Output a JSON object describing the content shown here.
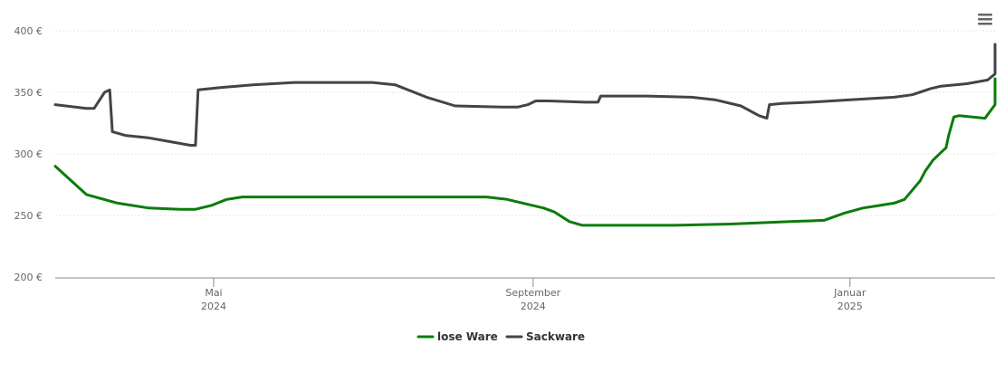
{
  "chart_data": {
    "type": "line",
    "title": "",
    "xlabel": "",
    "ylabel": "",
    "ylim": [
      200,
      400
    ],
    "y_ticks": [
      {
        "value": 200,
        "label": "200 €"
      },
      {
        "value": 250,
        "label": "250 €"
      },
      {
        "value": 300,
        "label": "300 €"
      },
      {
        "value": 350,
        "label": "350 €"
      },
      {
        "value": 400,
        "label": "400 €"
      }
    ],
    "xlim": [
      "2024-03-01",
      "2025-03-01"
    ],
    "x_ticks": [
      {
        "date": "2024-05-01",
        "month": "Mai",
        "year": "2024"
      },
      {
        "date": "2024-09-01",
        "month": "September",
        "year": "2024"
      },
      {
        "date": "2025-01-01",
        "month": "Januar",
        "year": "2025"
      }
    ],
    "grid": true,
    "legend_position": "bottom-center",
    "series": [
      {
        "name": "lose Ware",
        "color": "#0a7c0a",
        "points": [
          [
            "2024-03-01",
            290
          ],
          [
            "2024-03-13",
            267
          ],
          [
            "2024-03-25",
            260
          ],
          [
            "2024-04-06",
            256
          ],
          [
            "2024-04-18",
            255
          ],
          [
            "2024-04-24",
            255
          ],
          [
            "2024-04-30",
            258
          ],
          [
            "2024-05-06",
            263
          ],
          [
            "2024-05-12",
            265
          ],
          [
            "2024-06-01",
            265
          ],
          [
            "2024-07-01",
            265
          ],
          [
            "2024-08-01",
            265
          ],
          [
            "2024-08-14",
            265
          ],
          [
            "2024-08-22",
            263
          ],
          [
            "2024-09-05",
            256
          ],
          [
            "2024-09-09",
            253
          ],
          [
            "2024-09-15",
            245
          ],
          [
            "2024-09-20",
            242
          ],
          [
            "2024-10-01",
            242
          ],
          [
            "2024-10-25",
            242
          ],
          [
            "2024-11-16",
            243
          ],
          [
            "2024-12-09",
            245
          ],
          [
            "2024-12-22",
            246
          ],
          [
            "2024-12-30",
            252
          ],
          [
            "2025-01-06",
            256
          ],
          [
            "2025-01-12",
            258
          ],
          [
            "2025-01-18",
            260
          ],
          [
            "2025-01-22",
            263
          ],
          [
            "2025-01-28",
            278
          ],
          [
            "2025-01-30",
            286
          ],
          [
            "2025-02-02",
            295
          ],
          [
            "2025-02-05",
            301
          ],
          [
            "2025-02-07",
            305
          ],
          [
            "2025-02-08",
            315
          ],
          [
            "2025-02-10",
            330
          ],
          [
            "2025-02-12",
            331
          ],
          [
            "2025-02-22",
            329
          ],
          [
            "2025-02-28",
            340
          ],
          [
            "2025-03-07",
            350
          ],
          [
            "2025-03-15",
            361
          ]
        ]
      },
      {
        "name": "Sackware",
        "color": "#444444",
        "points": [
          [
            "2024-03-01",
            340
          ],
          [
            "2024-03-13",
            337
          ],
          [
            "2024-03-16",
            337
          ],
          [
            "2024-03-20",
            350
          ],
          [
            "2024-03-22",
            352
          ],
          [
            "2024-03-23",
            318
          ],
          [
            "2024-03-28",
            315
          ],
          [
            "2024-04-06",
            313
          ],
          [
            "2024-04-14",
            310
          ],
          [
            "2024-04-22",
            307
          ],
          [
            "2024-04-24",
            307
          ],
          [
            "2024-04-25",
            352
          ],
          [
            "2024-05-04",
            354
          ],
          [
            "2024-05-16",
            356
          ],
          [
            "2024-06-01",
            358
          ],
          [
            "2024-06-18",
            358
          ],
          [
            "2024-07-01",
            358
          ],
          [
            "2024-07-10",
            356
          ],
          [
            "2024-07-22",
            346
          ],
          [
            "2024-08-02",
            339
          ],
          [
            "2024-08-20",
            338
          ],
          [
            "2024-08-26",
            338
          ],
          [
            "2024-08-30",
            340
          ],
          [
            "2024-09-02",
            343
          ],
          [
            "2024-09-07",
            343
          ],
          [
            "2024-09-21",
            342
          ],
          [
            "2024-09-26",
            342
          ],
          [
            "2024-09-27",
            347
          ],
          [
            "2024-10-15",
            347
          ],
          [
            "2024-11-01",
            346
          ],
          [
            "2024-11-10",
            344
          ],
          [
            "2024-11-20",
            339
          ],
          [
            "2024-11-27",
            331
          ],
          [
            "2024-11-30",
            329
          ],
          [
            "2024-12-01",
            340
          ],
          [
            "2024-12-06",
            341
          ],
          [
            "2024-12-17",
            342
          ],
          [
            "2025-01-01",
            344
          ],
          [
            "2025-01-18",
            346
          ],
          [
            "2025-01-25",
            348
          ],
          [
            "2025-02-01",
            353
          ],
          [
            "2025-02-05",
            355
          ],
          [
            "2025-02-15",
            357
          ],
          [
            "2025-02-23",
            360
          ],
          [
            "2025-03-02",
            365
          ],
          [
            "2025-03-06",
            383
          ],
          [
            "2025-03-15",
            389
          ]
        ]
      }
    ]
  }
}
